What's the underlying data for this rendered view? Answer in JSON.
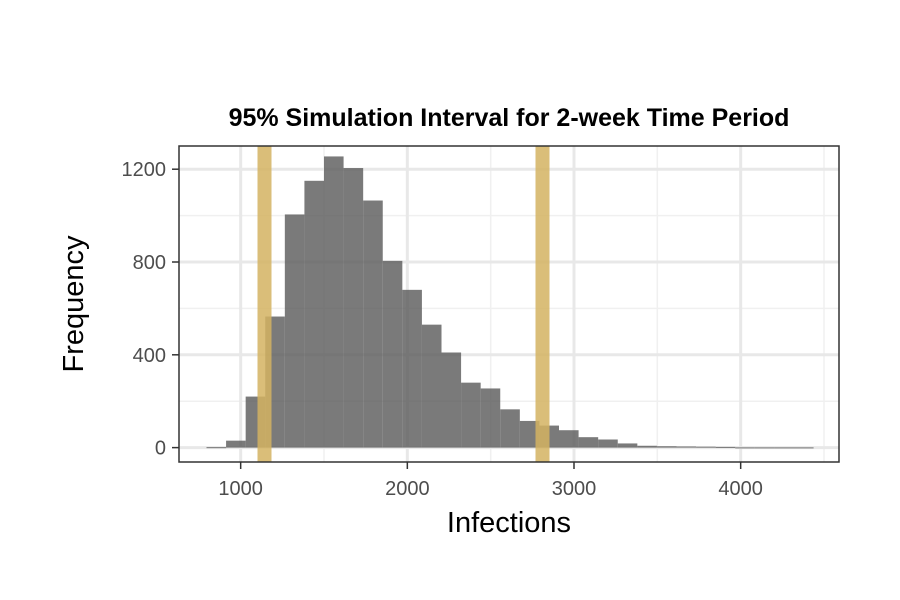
{
  "chart_data": {
    "type": "bar",
    "title": "95% Simulation Interval for 2-week Time Period",
    "xlabel": "Infections",
    "ylabel": "Frequency",
    "xlim": [
      630,
      4590
    ],
    "ylim": [
      -62,
      1300
    ],
    "x_ticks": [
      1000,
      2000,
      3000,
      4000
    ],
    "y_ticks": [
      0,
      400,
      800,
      1200
    ],
    "x_minor_ticks": [
      1500,
      2500,
      3500,
      4500
    ],
    "y_minor_ticks": [
      200,
      600,
      1000
    ],
    "bin_width": 117.5,
    "bin_starts": [
      795,
      912.5,
      1030,
      1147.5,
      1265,
      1382.5,
      1500,
      1617.5,
      1735,
      1852.5,
      1970,
      2087.5,
      2205,
      2322.5,
      2440,
      2557.5,
      2675,
      2792.5,
      2910,
      3027.5,
      3145,
      3262.5,
      3380,
      3497.5,
      3615,
      3732.5,
      3850,
      3967.5,
      4085,
      4202.5,
      4320
    ],
    "values": [
      2,
      30,
      220,
      565,
      1005,
      1150,
      1255,
      1205,
      1065,
      805,
      680,
      530,
      410,
      280,
      255,
      165,
      115,
      95,
      75,
      45,
      35,
      18,
      8,
      6,
      5,
      4,
      3,
      1,
      1,
      1,
      1
    ],
    "interval_lines": [
      1143,
      2811
    ],
    "bar_color": "#595959",
    "interval_color": "#d4b362",
    "grid": true,
    "legend": "none"
  }
}
